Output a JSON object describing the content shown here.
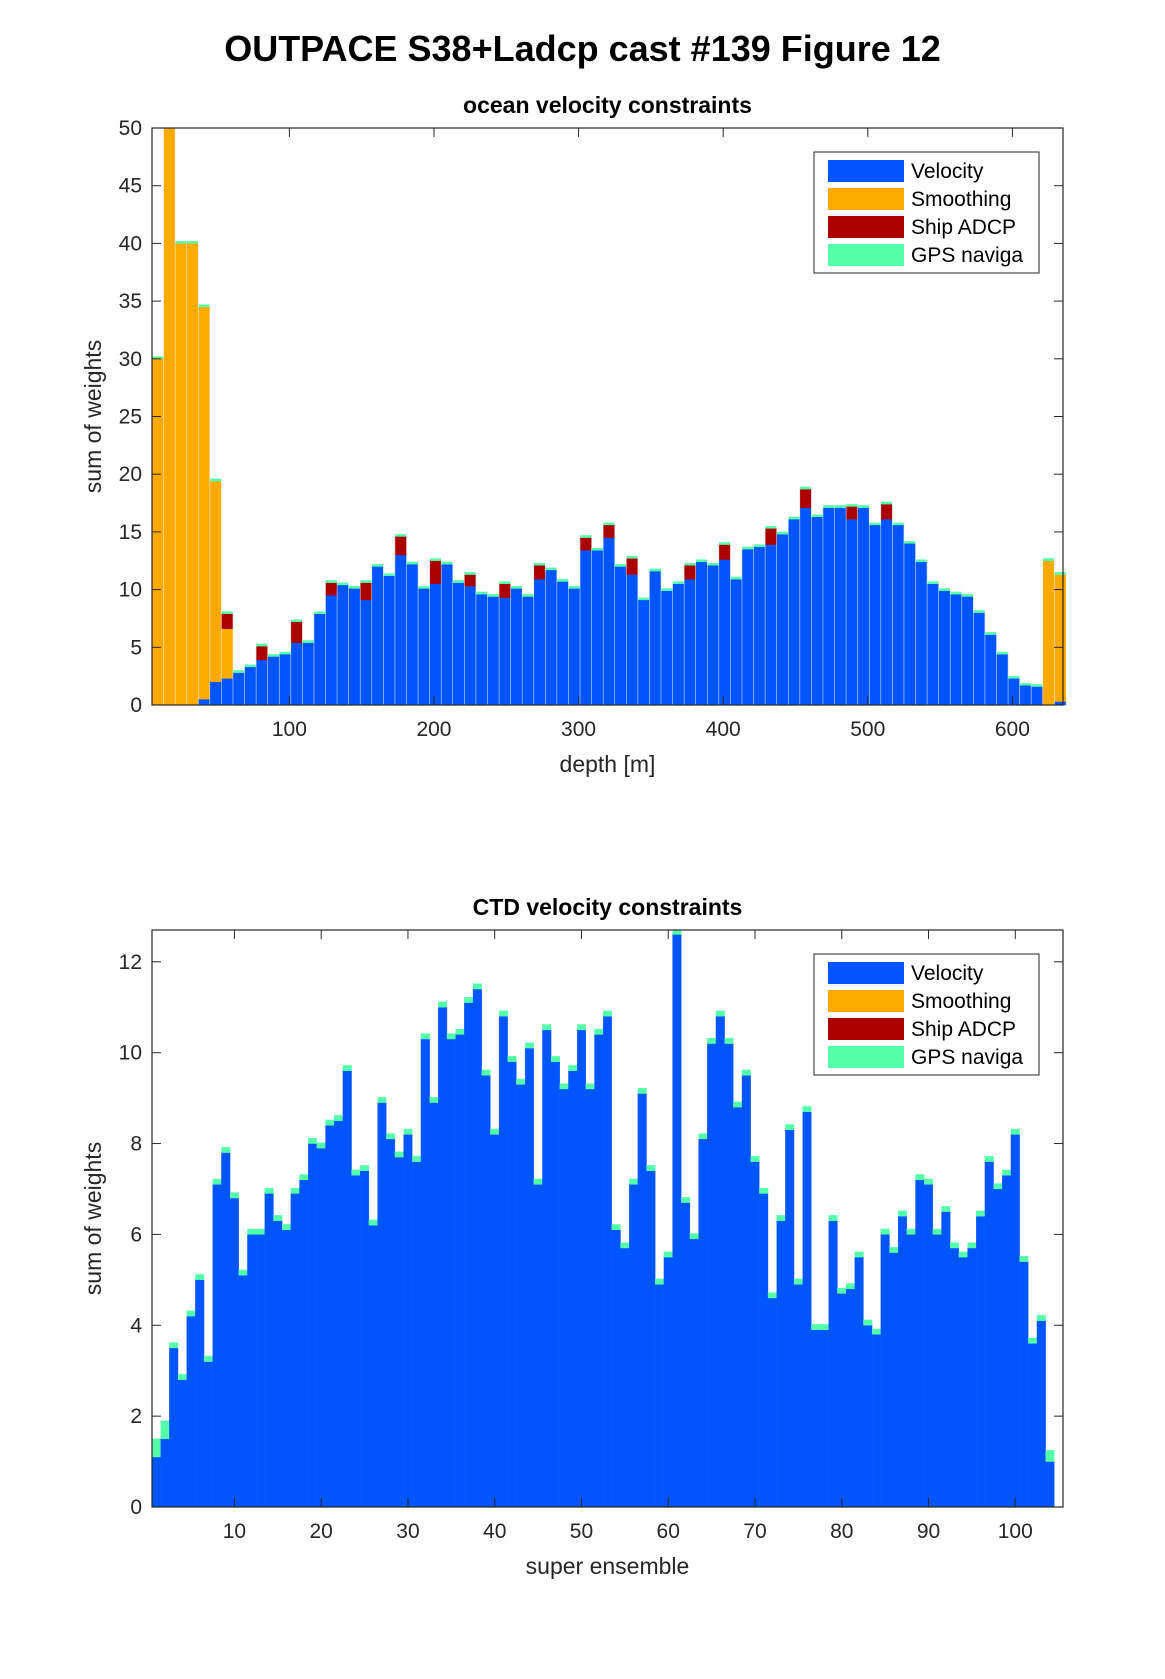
{
  "figure_title": "OUTPACE S38+Ladcp cast #139  Figure 12",
  "legend_labels": [
    "Velocity",
    "Smoothing",
    "Ship ADCP",
    "GPS naviga"
  ],
  "colors": {
    "velocity": "#0055ff",
    "smoothing": "#ffaa00",
    "ship_adcp": "#aa0000",
    "gps": "#55ffaa"
  },
  "chart_data": [
    {
      "type": "bar",
      "stacked": true,
      "title": "ocean velocity constraints",
      "xlabel": "depth [m]",
      "ylabel": "sum of weights",
      "xlim": [
        5,
        635
      ],
      "ylim": [
        0,
        50
      ],
      "xticks": [
        100,
        200,
        300,
        400,
        500,
        600
      ],
      "yticks": [
        0,
        5,
        10,
        15,
        20,
        25,
        30,
        35,
        40,
        45,
        50
      ],
      "legend_position": "top-right",
      "grid": false,
      "bin_width": 8,
      "x": [
        9,
        17,
        25,
        33,
        41,
        49,
        57,
        65,
        73,
        81,
        89,
        97,
        105,
        113,
        121,
        129,
        137,
        145,
        153,
        161,
        169,
        177,
        185,
        193,
        201,
        209,
        217,
        225,
        233,
        241,
        249,
        257,
        265,
        273,
        281,
        289,
        297,
        305,
        313,
        321,
        329,
        337,
        345,
        353,
        361,
        369,
        377,
        385,
        393,
        401,
        409,
        417,
        425,
        433,
        441,
        449,
        457,
        465,
        473,
        481,
        489,
        497,
        505,
        513,
        521,
        529,
        537,
        545,
        553,
        561,
        569,
        577,
        585,
        593,
        601,
        609,
        617,
        625,
        633
      ],
      "series": [
        {
          "name": "Velocity",
          "values": [
            0,
            0,
            0,
            0,
            0.5,
            2,
            2.3,
            2.8,
            3.3,
            3.9,
            4.2,
            4.4,
            5.4,
            5.4,
            7.9,
            9.5,
            10.4,
            10.1,
            9.1,
            12.0,
            11.2,
            13.0,
            12.2,
            10.1,
            10.5,
            12.2,
            10.6,
            10.3,
            9.6,
            9.4,
            9.3,
            10.1,
            9.4,
            10.9,
            11.7,
            10.7,
            10.1,
            13.4,
            13.4,
            14.5,
            12.0,
            11.3,
            9.1,
            11.6,
            9.9,
            10.5,
            10.9,
            12.4,
            12.1,
            12.6,
            10.9,
            13.5,
            13.7,
            13.9,
            14.8,
            16.1,
            17.1,
            16.3,
            17.1,
            17.1,
            16.1,
            17.1,
            15.6,
            16.1,
            15.6,
            14.0,
            12.4,
            10.5,
            9.9,
            9.6,
            9.4,
            8.0,
            6.1,
            4.4,
            2.3,
            1.7,
            1.6,
            0,
            0.3
          ]
        },
        {
          "name": "Smoothing",
          "values": [
            30.0,
            50.0,
            40.0,
            40.0,
            34.0,
            17.4,
            4.3,
            0,
            0,
            0,
            0,
            0,
            0,
            0,
            0,
            0,
            0,
            0,
            0,
            0,
            0,
            0,
            0,
            0,
            0,
            0,
            0,
            0,
            0,
            0,
            0,
            0,
            0,
            0,
            0,
            0,
            0,
            0,
            0,
            0,
            0,
            0,
            0,
            0,
            0,
            0,
            0,
            0,
            0,
            0,
            0,
            0,
            0,
            0,
            0,
            0,
            0,
            0,
            0,
            0,
            0,
            0,
            0,
            0,
            0,
            0,
            0,
            0,
            0,
            0,
            0,
            0,
            0,
            0,
            0,
            0,
            0,
            12.5,
            11.0
          ]
        },
        {
          "name": "Ship ADCP",
          "values": [
            0,
            0,
            0,
            0,
            0,
            0,
            1.3,
            0,
            0,
            1.2,
            0,
            0,
            1.8,
            0,
            0,
            1.1,
            0,
            0,
            1.5,
            0,
            0,
            1.6,
            0,
            0,
            2.0,
            0,
            0,
            1.0,
            0,
            0,
            1.2,
            0,
            0,
            1.2,
            0,
            0,
            0,
            1.1,
            0,
            1.1,
            0,
            1.4,
            0,
            0,
            0,
            0,
            1.2,
            0,
            0,
            1.3,
            0,
            0,
            0,
            1.4,
            0,
            0,
            1.6,
            0,
            0,
            0,
            1.1,
            0,
            0,
            1.3,
            0,
            0,
            0,
            0,
            0,
            0,
            0,
            0,
            0,
            0,
            0,
            0,
            0,
            0,
            0
          ]
        },
        {
          "name": "GPS naviga",
          "values": [
            0.2,
            0.2,
            0.2,
            0.2,
            0.2,
            0.2,
            0.2,
            0.2,
            0.2,
            0.2,
            0.2,
            0.2,
            0.2,
            0.2,
            0.2,
            0.2,
            0.2,
            0.2,
            0.2,
            0.2,
            0.2,
            0.2,
            0.2,
            0.2,
            0.2,
            0.2,
            0.2,
            0.2,
            0.2,
            0.2,
            0.2,
            0.2,
            0.2,
            0.2,
            0.2,
            0.2,
            0.2,
            0.2,
            0.2,
            0.2,
            0.2,
            0.2,
            0.2,
            0.2,
            0.2,
            0.2,
            0.2,
            0.2,
            0.2,
            0.2,
            0.2,
            0.2,
            0.2,
            0.2,
            0.2,
            0.2,
            0.2,
            0.2,
            0.2,
            0.2,
            0.2,
            0.2,
            0.2,
            0.2,
            0.2,
            0.2,
            0.2,
            0.2,
            0.2,
            0.2,
            0.2,
            0.2,
            0.2,
            0.2,
            0.2,
            0.2,
            0.2,
            0.2,
            0.2
          ]
        }
      ]
    },
    {
      "type": "bar",
      "stacked": true,
      "title": "CTD velocity constraints",
      "xlabel": "super ensemble",
      "ylabel": "sum of weights",
      "xlim": [
        0.5,
        105.5
      ],
      "ylim": [
        0,
        12.7
      ],
      "xticks": [
        10,
        20,
        30,
        40,
        50,
        60,
        70,
        80,
        90,
        100
      ],
      "yticks": [
        0,
        2,
        4,
        6,
        8,
        10,
        12
      ],
      "legend_position": "top-right",
      "grid": false,
      "bin_width": 1,
      "x": [
        1,
        2,
        3,
        4,
        5,
        6,
        7,
        8,
        9,
        10,
        11,
        12,
        13,
        14,
        15,
        16,
        17,
        18,
        19,
        20,
        21,
        22,
        23,
        24,
        25,
        26,
        27,
        28,
        29,
        30,
        31,
        32,
        33,
        34,
        35,
        36,
        37,
        38,
        39,
        40,
        41,
        42,
        43,
        44,
        45,
        46,
        47,
        48,
        49,
        50,
        51,
        52,
        53,
        54,
        55,
        56,
        57,
        58,
        59,
        60,
        61,
        62,
        63,
        64,
        65,
        66,
        67,
        68,
        69,
        70,
        71,
        72,
        73,
        74,
        75,
        76,
        77,
        78,
        79,
        80,
        81,
        82,
        83,
        84,
        85,
        86,
        87,
        88,
        89,
        90,
        91,
        92,
        93,
        94,
        95,
        96,
        97,
        98,
        99,
        100,
        101,
        102,
        103,
        104,
        105
      ],
      "series": [
        {
          "name": "Velocity",
          "values": [
            1.1,
            1.5,
            3.5,
            2.8,
            4.2,
            5.0,
            3.2,
            7.1,
            7.8,
            6.8,
            5.1,
            6.0,
            6.0,
            6.9,
            6.3,
            6.1,
            6.9,
            7.2,
            8.0,
            7.9,
            8.4,
            8.5,
            9.6,
            7.3,
            7.4,
            6.2,
            8.9,
            8.1,
            7.7,
            8.2,
            7.6,
            10.3,
            8.9,
            11.0,
            10.3,
            10.4,
            11.1,
            11.4,
            9.5,
            8.2,
            10.8,
            9.8,
            9.3,
            10.1,
            7.1,
            10.5,
            9.8,
            9.2,
            9.6,
            10.5,
            9.2,
            10.4,
            10.8,
            6.1,
            5.7,
            7.1,
            9.1,
            7.4,
            4.9,
            5.5,
            12.6,
            6.7,
            5.9,
            8.1,
            10.2,
            10.8,
            10.2,
            8.8,
            9.5,
            7.6,
            6.9,
            4.6,
            6.3,
            8.3,
            4.9,
            8.7,
            3.9,
            3.9,
            6.3,
            4.7,
            4.8,
            5.5,
            4.0,
            3.8,
            6.0,
            5.6,
            6.4,
            6.0,
            7.2,
            7.1,
            6.0,
            6.5,
            5.7,
            5.5,
            5.7,
            6.4,
            7.6,
            7.0,
            7.3,
            8.2,
            5.4,
            3.6,
            4.1,
            1.0,
            0
          ]
        },
        {
          "name": "Smoothing",
          "values": [
            0,
            0,
            0,
            0,
            0,
            0,
            0,
            0,
            0,
            0,
            0,
            0,
            0,
            0,
            0,
            0,
            0,
            0,
            0,
            0,
            0,
            0,
            0,
            0,
            0,
            0,
            0,
            0,
            0,
            0,
            0,
            0,
            0,
            0,
            0,
            0,
            0,
            0,
            0,
            0,
            0,
            0,
            0,
            0,
            0,
            0,
            0,
            0,
            0,
            0,
            0,
            0,
            0,
            0,
            0,
            0,
            0,
            0,
            0,
            0,
            0,
            0,
            0,
            0,
            0,
            0,
            0,
            0,
            0,
            0,
            0,
            0,
            0,
            0,
            0,
            0,
            0,
            0,
            0,
            0,
            0,
            0,
            0,
            0,
            0,
            0,
            0,
            0,
            0,
            0,
            0,
            0,
            0,
            0,
            0,
            0,
            0,
            0,
            0,
            0,
            0,
            0,
            0,
            0,
            0
          ]
        },
        {
          "name": "Ship ADCP",
          "values": [
            0,
            0,
            0,
            0,
            0,
            0,
            0,
            0,
            0,
            0,
            0,
            0,
            0,
            0,
            0,
            0,
            0,
            0,
            0,
            0,
            0,
            0,
            0,
            0,
            0,
            0,
            0,
            0,
            0,
            0,
            0,
            0,
            0,
            0,
            0,
            0,
            0,
            0,
            0,
            0,
            0,
            0,
            0,
            0,
            0,
            0,
            0,
            0,
            0,
            0,
            0,
            0,
            0,
            0,
            0,
            0,
            0,
            0,
            0,
            0,
            0,
            0,
            0,
            0,
            0,
            0,
            0,
            0,
            0,
            0,
            0,
            0,
            0,
            0,
            0,
            0,
            0,
            0,
            0,
            0,
            0,
            0,
            0,
            0,
            0,
            0,
            0,
            0,
            0,
            0,
            0,
            0,
            0,
            0,
            0,
            0,
            0,
            0,
            0,
            0,
            0,
            0,
            0,
            0,
            0
          ]
        },
        {
          "name": "GPS naviga",
          "values": [
            0.4,
            0.4,
            0.12,
            0.12,
            0.12,
            0.12,
            0.12,
            0.12,
            0.12,
            0.12,
            0.12,
            0.12,
            0.12,
            0.12,
            0.12,
            0.12,
            0.12,
            0.12,
            0.12,
            0.12,
            0.12,
            0.12,
            0.12,
            0.12,
            0.12,
            0.12,
            0.12,
            0.12,
            0.12,
            0.12,
            0.12,
            0.12,
            0.12,
            0.12,
            0.12,
            0.12,
            0.12,
            0.12,
            0.12,
            0.12,
            0.12,
            0.12,
            0.12,
            0.12,
            0.12,
            0.12,
            0.12,
            0.12,
            0.12,
            0.12,
            0.12,
            0.12,
            0.12,
            0.12,
            0.12,
            0.12,
            0.12,
            0.12,
            0.12,
            0.12,
            0.12,
            0.12,
            0.12,
            0.12,
            0.12,
            0.12,
            0.12,
            0.12,
            0.12,
            0.12,
            0.12,
            0.12,
            0.12,
            0.12,
            0.12,
            0.12,
            0.12,
            0.12,
            0.12,
            0.12,
            0.12,
            0.12,
            0.12,
            0.12,
            0.12,
            0.12,
            0.12,
            0.12,
            0.12,
            0.12,
            0.12,
            0.12,
            0.12,
            0.12,
            0.12,
            0.12,
            0.12,
            0.12,
            0.12,
            0.12,
            0.12,
            0.12,
            0.12,
            0.25,
            0
          ]
        }
      ]
    }
  ]
}
